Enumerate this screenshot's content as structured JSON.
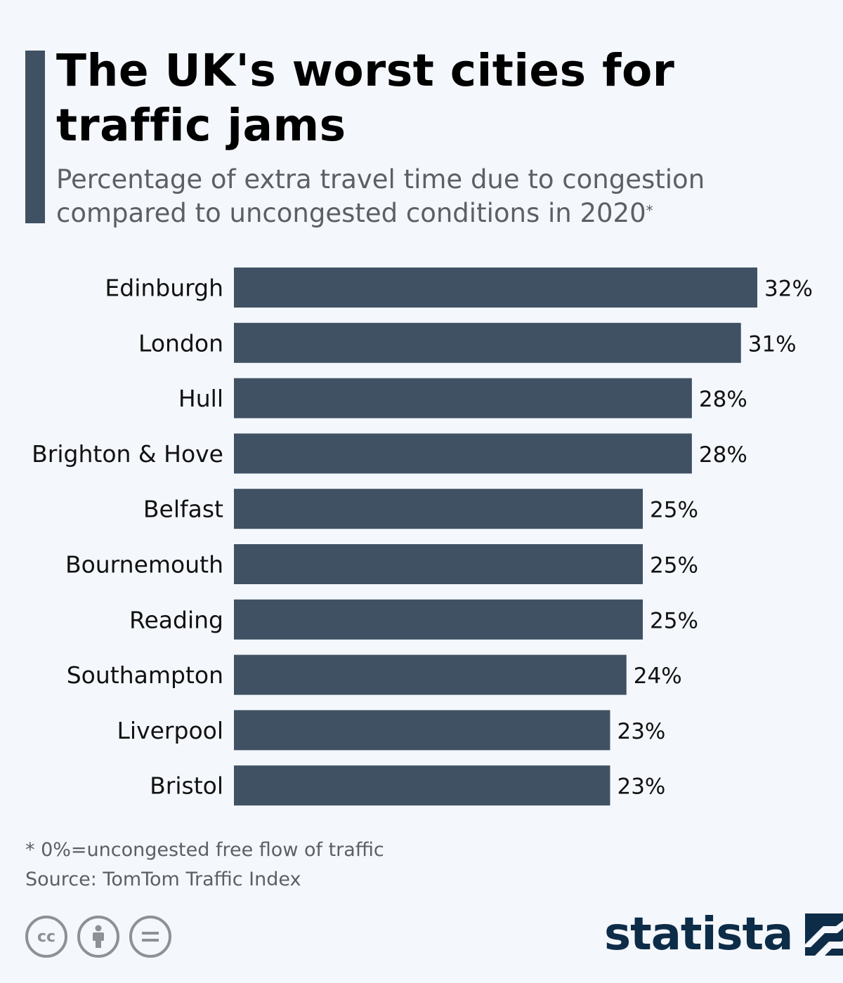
{
  "header": {
    "title": "The UK's worst cities for traffic jams",
    "subtitle": "Percentage of extra travel time due to congestion compared to uncongested conditions in 2020",
    "subtitle_marker": "*"
  },
  "chart_data": {
    "type": "bar",
    "orientation": "horizontal",
    "categories": [
      "Edinburgh",
      "London",
      "Hull",
      "Brighton & Hove",
      "Belfast",
      "Bournemouth",
      "Reading",
      "Southampton",
      "Liverpool",
      "Bristol"
    ],
    "values": [
      32,
      31,
      28,
      28,
      25,
      25,
      25,
      24,
      23,
      23
    ],
    "value_suffix": "%",
    "bar_color": "#3f5163",
    "xlim": [
      0,
      32
    ],
    "grid": false,
    "title": "",
    "xlabel": "",
    "ylabel": ""
  },
  "footer": {
    "note": "* 0%=uncongested free flow of traffic",
    "source": "Source: TomTom Traffic Index",
    "license_icons": [
      "cc-icon",
      "attribution-icon",
      "no-derivatives-icon"
    ],
    "brand": "statista"
  },
  "colors": {
    "background": "#f4f7fb",
    "accent": "#3f5163",
    "brand": "#0d2c48"
  }
}
